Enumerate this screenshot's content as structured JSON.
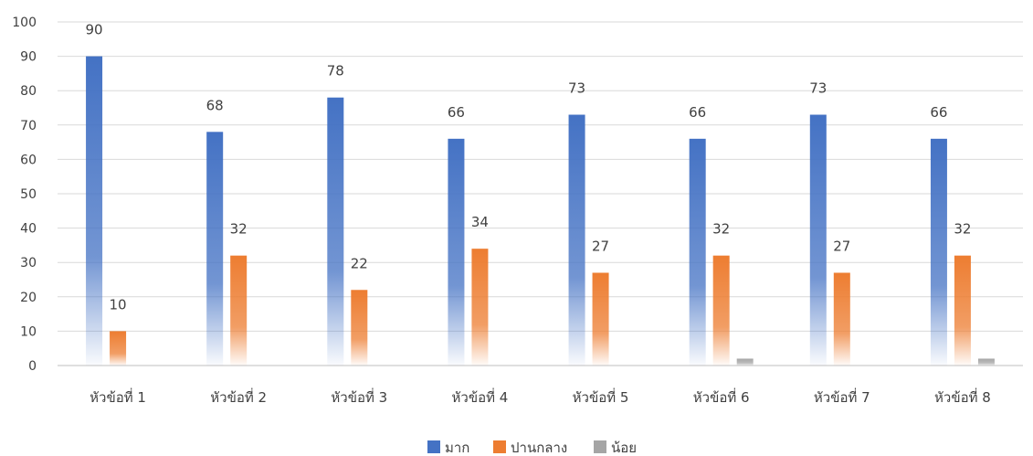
{
  "chart_data": {
    "type": "bar",
    "categories": [
      "หัวข้อที่ 1",
      "หัวข้อที่ 2",
      "หัวข้อที่ 3",
      "หัวข้อที่ 4",
      "หัวข้อที่ 5",
      "หัวข้อที่ 6",
      "หัวข้อที่ 7",
      "หัวข้อที่ 8"
    ],
    "series": [
      {
        "name": "มาก",
        "values": [
          90,
          68,
          78,
          66,
          73,
          66,
          73,
          66
        ],
        "color": "#4472C4",
        "labels": [
          "90",
          "68",
          "78",
          "66",
          "73",
          "66",
          "73",
          "66"
        ]
      },
      {
        "name": "ปานกลาง",
        "values": [
          10,
          32,
          22,
          34,
          27,
          32,
          27,
          32
        ],
        "color": "#ED7D31",
        "labels": [
          "10",
          "32",
          "22",
          "34",
          "27",
          "32",
          "27",
          "32"
        ]
      },
      {
        "name": "น้อย",
        "values": [
          0,
          0,
          0,
          0,
          0,
          2,
          0,
          2
        ],
        "color": "#A5A5A5",
        "labels": []
      }
    ],
    "y_ticks": [
      "0",
      "10",
      "20",
      "30",
      "40",
      "50",
      "60",
      "70",
      "80",
      "90",
      "100"
    ],
    "ylim": [
      0,
      100
    ],
    "grid": true,
    "legend": "bottom",
    "title": "",
    "xlabel": "",
    "ylabel": ""
  }
}
